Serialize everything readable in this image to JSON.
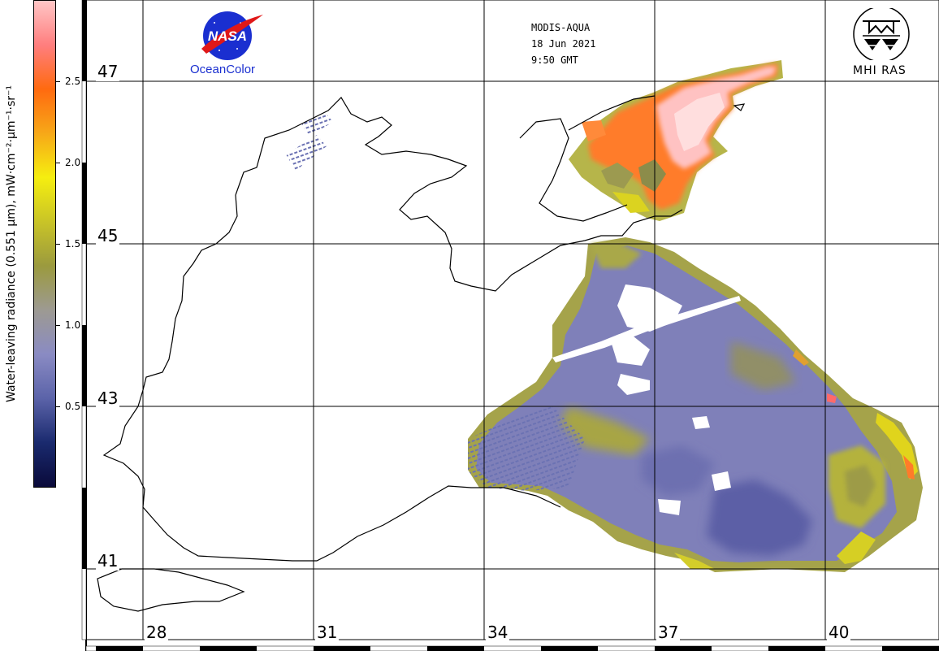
{
  "header": {
    "sensor": "MODIS-AQUA",
    "date": "18 Jun 2021",
    "time": "9:50 GMT",
    "left_logo_text": "NASA",
    "left_logo_caption": "OceanColor",
    "right_logo_caption": "MHI RAS"
  },
  "colorbar": {
    "title": "Water-leaving radiance (0.551 μm), mW·cm⁻²·μm⁻¹·sr⁻¹",
    "min": 0,
    "max": 3,
    "ticks": [
      "0.5",
      "1.0",
      "1.5",
      "2.0",
      "2.5"
    ],
    "tick_values": [
      0.5,
      1.0,
      1.5,
      2.0,
      2.5
    ],
    "color_stops": [
      "#0a0a3a",
      "#1a2a6e",
      "#5b63a9",
      "#8a8bc3",
      "#9d9a92",
      "#9b9a3e",
      "#c9c427",
      "#f5ee10",
      "#f7a818",
      "#ff6a10",
      "#ff7e7e",
      "#ffc6c6"
    ]
  },
  "map": {
    "lat_labels": [
      "47",
      "45",
      "43",
      "41"
    ],
    "lon_labels": [
      "28",
      "31",
      "34",
      "37",
      "40"
    ]
  }
}
